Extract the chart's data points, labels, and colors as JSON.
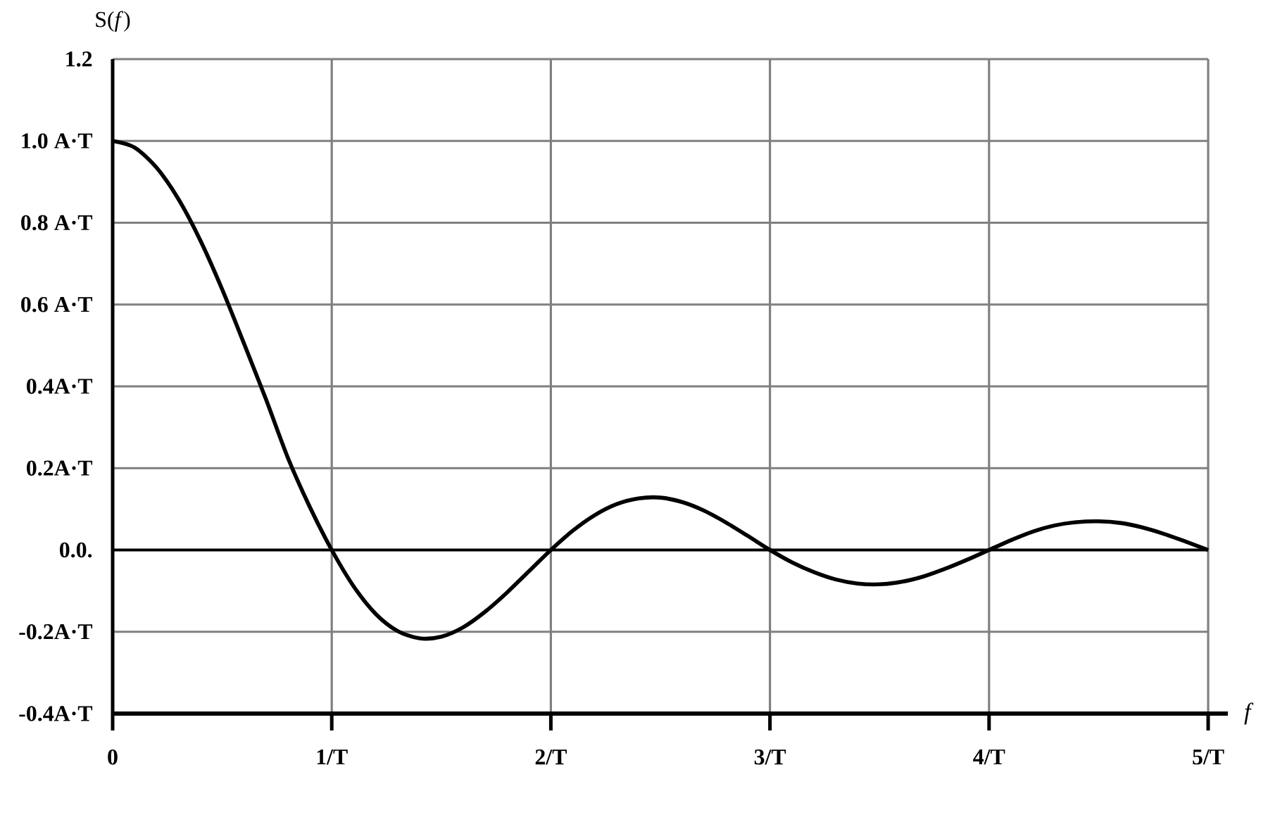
{
  "chart_data": {
    "type": "line",
    "xlabel": "f",
    "ylabel": "S(*f*)",
    "x": [
      0,
      0.1,
      0.2,
      0.3,
      0.4,
      0.5,
      0.6,
      0.7,
      0.8,
      0.9,
      1.0,
      1.1,
      1.2,
      1.3,
      1.4,
      1.5,
      1.6,
      1.7,
      1.8,
      1.9,
      2.0,
      2.1,
      2.2,
      2.3,
      2.4,
      2.5,
      2.6,
      2.7,
      2.8,
      2.9,
      3.0,
      3.1,
      3.2,
      3.3,
      3.4,
      3.5,
      3.6,
      3.7,
      3.8,
      3.9,
      4.0,
      4.1,
      4.2,
      4.3,
      4.4,
      4.5,
      4.6,
      4.7,
      4.8,
      4.9,
      5.0
    ],
    "values": [
      1.0,
      0.984,
      0.935,
      0.858,
      0.757,
      0.637,
      0.504,
      0.368,
      0.225,
      0.105,
      0.0,
      -0.089,
      -0.156,
      -0.198,
      -0.216,
      -0.212,
      -0.189,
      -0.151,
      -0.104,
      -0.052,
      0.0,
      0.047,
      0.085,
      0.112,
      0.126,
      0.128,
      0.117,
      0.096,
      0.067,
      0.034,
      0.0,
      -0.03,
      -0.054,
      -0.072,
      -0.082,
      -0.084,
      -0.078,
      -0.065,
      -0.046,
      -0.024,
      0.0,
      0.024,
      0.045,
      0.06,
      0.068,
      0.07,
      0.066,
      0.055,
      0.039,
      0.02,
      0.0
    ],
    "color": "#000000",
    "marker": "none",
    "line_style": "solid",
    "xlim": [
      0,
      5
    ],
    "ylim": [
      -0.4,
      1.2
    ],
    "xticks": [
      0,
      {
        "value": 1,
        "label": "1/T"
      },
      {
        "value": 2,
        "label": "2/T"
      },
      {
        "value": 3,
        "label": "3/T"
      },
      {
        "value": 4,
        "label": "4/T"
      },
      {
        "value": 5,
        "label": "5/T"
      }
    ],
    "yticks": [
      {
        "value": -0.4,
        "label": "-0.4A·T"
      },
      {
        "value": -0.2,
        "label": "-0.2A·T"
      },
      {
        "value": 0,
        "label": "0.0."
      },
      {
        "value": 0.2,
        "label": "0.2A·T"
      },
      {
        "value": 0.4,
        "label": "0.4A·T"
      },
      {
        "value": 0.6,
        "label": "0.6 A·T"
      },
      {
        "value": 0.8,
        "label": "0.8 A·T"
      },
      {
        "value": 1.0,
        "label": "1.0 A·T"
      },
      1.2
    ],
    "grid": true,
    "ref_lines": [
      {
        "axis": "y",
        "value": 0,
        "color": "#000000"
      }
    ]
  }
}
